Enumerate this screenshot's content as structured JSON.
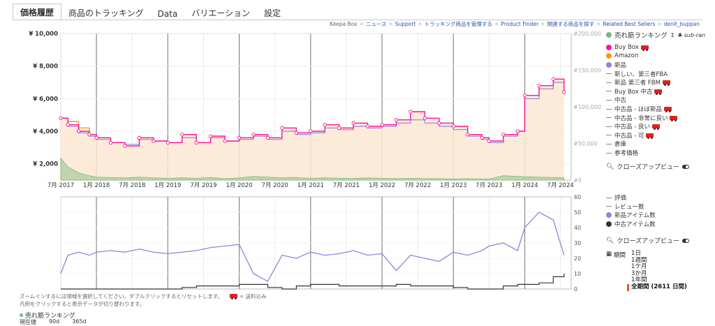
{
  "tabs": [
    "価格履歴",
    "商品のトラッキング",
    "Data",
    "バリエーション",
    "設定"
  ],
  "top_links": {
    "keepa_box": "Keepa Box",
    "items": [
      "ニュース",
      "Support",
      "トラッキング商品を管理する",
      "Product Finder",
      "関連する商品を探す",
      "Related Best Sellers",
      "denit_buppan"
    ]
  },
  "legend": {
    "rank_label": "売れ筋ランキング",
    "rank_extra": "sub-ran",
    "items": [
      {
        "label": "Buy Box",
        "type": "dot",
        "color": "#ff1493",
        "truck": true
      },
      {
        "label": "Amazon",
        "type": "dot",
        "color": "#ff9900",
        "truck": false
      },
      {
        "label": "新品",
        "type": "dot",
        "color": "#8888dd",
        "truck": false
      },
      {
        "label": "新しい、第三者FBA",
        "type": "dash",
        "truck": false
      },
      {
        "label": "新品 第三者 FBM",
        "type": "dash",
        "truck": true
      },
      {
        "label": "Buy Box 中古",
        "type": "dash",
        "truck": true
      },
      {
        "label": "中古",
        "type": "dash",
        "truck": false
      },
      {
        "label": "中古品 - ほぼ新品",
        "type": "dash",
        "truck": true
      },
      {
        "label": "中古品 - 非常に良い",
        "type": "dash",
        "truck": true
      },
      {
        "label": "中古品 - 良い",
        "type": "dash",
        "truck": true
      },
      {
        "label": "中古品 - 可",
        "type": "dash",
        "truck": true
      },
      {
        "label": "倉庫",
        "type": "dash",
        "truck": false
      },
      {
        "label": "参考価格",
        "type": "dash",
        "truck": false
      }
    ],
    "closeup_label": "クローズアップビュー",
    "lower_items": [
      {
        "label": "評価",
        "type": "dash"
      },
      {
        "label": "レビュー数",
        "type": "dash"
      },
      {
        "label": "新品アイテム数",
        "type": "dot",
        "color": "#8888dd"
      },
      {
        "label": "中古アイテム数",
        "type": "dot",
        "color": "#333333"
      }
    ],
    "period_label": "期間",
    "periods": [
      "1日",
      "1週間",
      "1ケ月",
      "3か月",
      "1年間"
    ],
    "period_selected": "全期間 (2611 日間)"
  },
  "notes": {
    "line1": "ズームインするには領域を選択してください。ダブルクリックするとリセットします。",
    "shipping": "= 送料込み",
    "line2": "凡例をクリックすると表示データが切り替わります。",
    "rank_title": "売れ筋ランキング",
    "bottom": [
      "現在値",
      "90d",
      "365d"
    ]
  },
  "colors": {
    "buybox": "#ff1493",
    "amazon": "#ff9900",
    "new": "#8888dd",
    "rank": "#7cb77c",
    "used_count": "#333333",
    "fill": "#fbe7d2"
  },
  "chart_data": [
    {
      "type": "line",
      "title": "",
      "x_ticks": [
        "7月 2017",
        "1月 2018",
        "7月 2018",
        "1月 2019",
        "7月 2019",
        "1月 2020",
        "7月 2020",
        "1月 2021",
        "7月 2021",
        "1月 2022",
        "7月 2022",
        "1月 2023",
        "7月 2023",
        "1月 2024",
        "7月 2024"
      ],
      "y_ticks": [
        "¥ 2,000",
        "¥ 4,000",
        "¥ 6,000",
        "¥ 8,000",
        "¥ 10,000"
      ],
      "y2_ticks": [
        "#0",
        "#50,000",
        "#100,000",
        "#150,000",
        "#200,000"
      ],
      "ylim": [
        1000,
        10000
      ],
      "y2lim": [
        0,
        200000
      ],
      "x": [
        2017.5,
        2017.6,
        2017.75,
        2017.9,
        2018.0,
        2018.2,
        2018.4,
        2018.6,
        2018.8,
        2019.0,
        2019.2,
        2019.4,
        2019.6,
        2019.8,
        2020.0,
        2020.2,
        2020.4,
        2020.6,
        2020.8,
        2021.0,
        2021.2,
        2021.4,
        2021.6,
        2021.8,
        2022.0,
        2022.2,
        2022.4,
        2022.6,
        2022.8,
        2023.0,
        2023.2,
        2023.4,
        2023.5,
        2023.7,
        2023.9,
        2024.0,
        2024.2,
        2024.4,
        2024.55
      ],
      "series": [
        {
          "name": "Buy Box",
          "values": [
            4800,
            4400,
            4000,
            3800,
            3600,
            3300,
            3100,
            3600,
            3400,
            3300,
            3800,
            3300,
            3700,
            3400,
            3600,
            3800,
            3600,
            4200,
            3900,
            4000,
            4400,
            4200,
            4500,
            4300,
            4400,
            4700,
            5200,
            4800,
            4500,
            4300,
            3800,
            3600,
            3400,
            3800,
            4000,
            6200,
            6800,
            7200,
            6400
          ]
        },
        {
          "name": "Amazon",
          "values": [
            4800,
            4600,
            4200,
            3900,
            null,
            null,
            null,
            null,
            null,
            null,
            null,
            null,
            null,
            null,
            null,
            null,
            null,
            null,
            null,
            null,
            null,
            null,
            null,
            null,
            null,
            null,
            null,
            null,
            null,
            null,
            null,
            null,
            null,
            null,
            null,
            null,
            null,
            null,
            null
          ]
        },
        {
          "name": "新品",
          "values": [
            4800,
            4300,
            3900,
            3700,
            3500,
            3300,
            3200,
            3500,
            3400,
            3300,
            3600,
            3300,
            3600,
            3400,
            3500,
            3700,
            3500,
            4000,
            3800,
            3900,
            4200,
            4100,
            4300,
            4200,
            4300,
            4500,
            4700,
            4500,
            4300,
            4100,
            3700,
            3500,
            3300,
            3700,
            4000,
            6000,
            6600,
            7000,
            6300
          ]
        },
        {
          "name": "売れ筋ランキング",
          "values": [
            30000,
            18000,
            10000,
            6000,
            4000,
            3500,
            3000,
            4000,
            3000,
            2500,
            3000,
            2500,
            3500,
            2000,
            3000,
            5000,
            4000,
            3000,
            3500,
            2500,
            3000,
            2500,
            2500,
            3000,
            2500,
            2000,
            2500,
            2000,
            2000,
            1500,
            2000,
            1500,
            1500,
            6000,
            5000,
            4500,
            4000,
            3500,
            3000
          ]
        }
      ]
    },
    {
      "type": "line",
      "title": "",
      "y_ticks": [
        "0",
        "10",
        "20",
        "30",
        "40",
        "50",
        "60"
      ],
      "ylim": [
        0,
        60
      ],
      "x": [
        2017.5,
        2017.6,
        2017.75,
        2017.9,
        2018.0,
        2018.2,
        2018.4,
        2018.6,
        2018.8,
        2019.0,
        2019.2,
        2019.4,
        2019.6,
        2019.8,
        2020.0,
        2020.2,
        2020.4,
        2020.6,
        2020.8,
        2021.0,
        2021.2,
        2021.4,
        2021.6,
        2021.8,
        2022.0,
        2022.2,
        2022.4,
        2022.6,
        2022.8,
        2023.0,
        2023.2,
        2023.4,
        2023.5,
        2023.7,
        2023.9,
        2024.0,
        2024.2,
        2024.4,
        2024.55
      ],
      "series": [
        {
          "name": "新品アイテム数",
          "values": [
            10,
            22,
            24,
            22,
            24,
            25,
            24,
            26,
            24,
            23,
            24,
            25,
            27,
            28,
            29,
            10,
            5,
            22,
            20,
            24,
            22,
            23,
            25,
            22,
            23,
            12,
            22,
            20,
            18,
            24,
            22,
            25,
            28,
            30,
            25,
            40,
            50,
            45,
            22
          ]
        },
        {
          "name": "中古アイテム数",
          "values": [
            0,
            0,
            0,
            0,
            0,
            0,
            0,
            0,
            0,
            0,
            1,
            2,
            2,
            2,
            3,
            3,
            1,
            0,
            2,
            3,
            3,
            2,
            2,
            2,
            2,
            3,
            2,
            2,
            2,
            1,
            0,
            0,
            0,
            2,
            3,
            3,
            4,
            8,
            10
          ]
        }
      ]
    }
  ]
}
